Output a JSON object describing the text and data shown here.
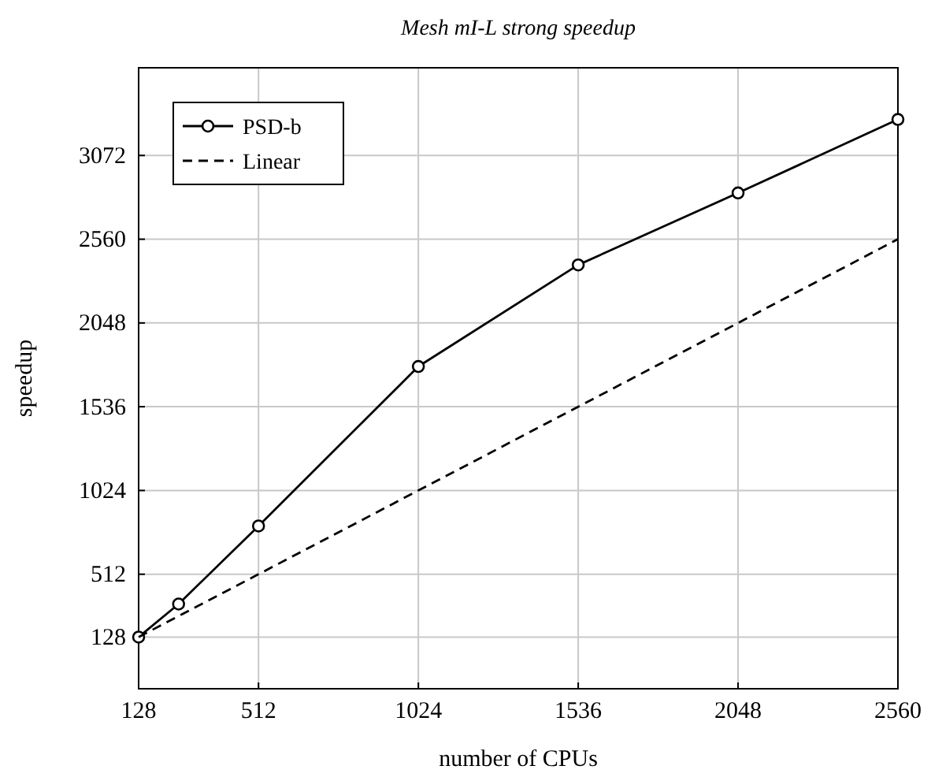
{
  "chart_data": {
    "type": "line",
    "title": "Mesh mI-L strong speedup",
    "xlabel": "number of CPUs",
    "ylabel": "speedup",
    "xlim": [
      128,
      2560
    ],
    "xticks": [
      128,
      512,
      1024,
      1536,
      2048,
      2560
    ],
    "ylim": [
      -188,
      3608
    ],
    "yticks": [
      128,
      512,
      1024,
      1536,
      2048,
      2560,
      3072
    ],
    "grid": true,
    "legend": "top left",
    "series": [
      {
        "name": "PSD-b",
        "color": "#000000",
        "x": [
          128,
          256,
          512,
          1024,
          1536,
          2048,
          2560
        ],
        "values": [
          128,
          330,
          807,
          1782,
          2403,
          2843,
          3292
        ],
        "marker": "circle",
        "line_style": "solid"
      },
      {
        "name": "Linear",
        "color": "#000000",
        "x": [
          128,
          2560
        ],
        "values": [
          128,
          2560
        ],
        "marker": "none",
        "line_style": "dashed"
      }
    ]
  }
}
